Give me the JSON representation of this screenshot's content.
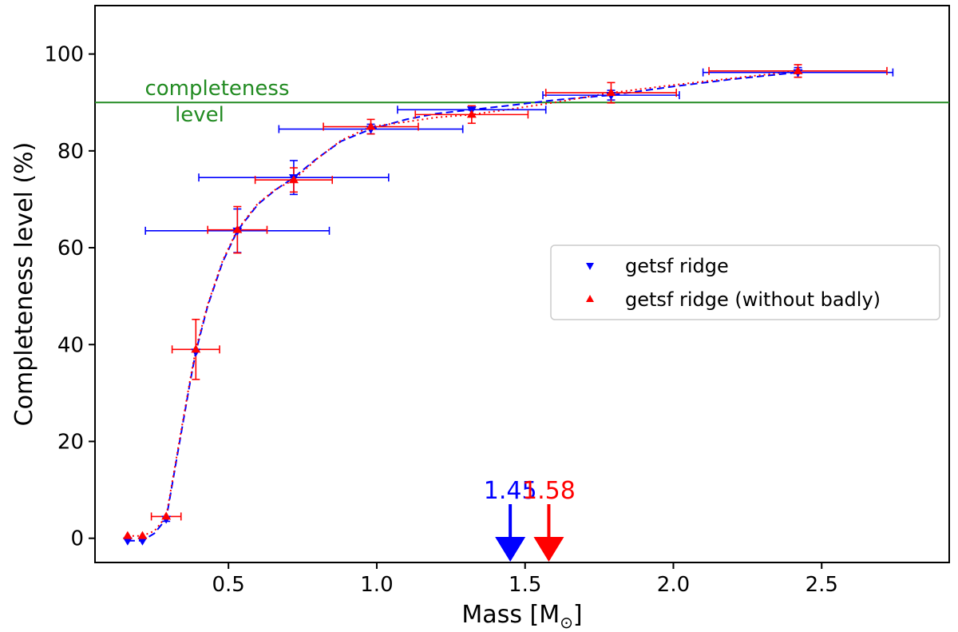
{
  "chart_data": {
    "type": "scatter",
    "xlabel": "Mass [M",
    "xlabel_sub": "⊙",
    "xlabel_close": "]",
    "ylabel": "Completeness level (%)",
    "xlim": [
      0.05,
      2.93
    ],
    "ylim": [
      -5,
      110
    ],
    "x_ticks": [
      0.5,
      1.0,
      1.5,
      2.0,
      2.5
    ],
    "x_tick_labels": [
      "0.5",
      "1.0",
      "1.5",
      "2.0",
      "2.5"
    ],
    "y_ticks": [
      0,
      20,
      40,
      60,
      80,
      100
    ],
    "y_tick_labels": [
      "0",
      "20",
      "40",
      "60",
      "80",
      "100"
    ],
    "grid": false,
    "legend_position": "center-right",
    "reference_line": {
      "y": 90,
      "label_line1": "completeness",
      "label_line2": "level",
      "color": "#228b22"
    },
    "series": [
      {
        "name": "getsf ridge",
        "color": "#0000ff",
        "marker": "triangle-down",
        "line_style": "dashed",
        "points": [
          {
            "x": 0.16,
            "y": -0.5,
            "xerr": 0,
            "yerr": 0
          },
          {
            "x": 0.21,
            "y": -0.5,
            "xerr": 0,
            "yerr": 0
          },
          {
            "x": 0.29,
            "y": 4.0,
            "xerr": 0,
            "yerr": 0.5
          },
          {
            "x": 0.39,
            "y": 38.5,
            "xerr": 0,
            "yerr": 0
          },
          {
            "x": 0.53,
            "y": 63.5,
            "xerr": 0.31,
            "yerr": 4.5
          },
          {
            "x": 0.72,
            "y": 74.5,
            "xerr": 0.32,
            "yerr": 3.5
          },
          {
            "x": 0.98,
            "y": 84.5,
            "xerr": 0.31,
            "yerr": 1.0
          },
          {
            "x": 1.32,
            "y": 88.5,
            "xerr": 0.25,
            "yerr": 0
          },
          {
            "x": 1.79,
            "y": 91.5,
            "xerr": 0.23,
            "yerr": 1.0
          },
          {
            "x": 2.42,
            "y": 96.2,
            "xerr": 0.32,
            "yerr": 1.0
          }
        ],
        "curve": [
          [
            0.16,
            -0.5
          ],
          [
            0.21,
            -0.5
          ],
          [
            0.25,
            1.0
          ],
          [
            0.29,
            4.0
          ],
          [
            0.33,
            18
          ],
          [
            0.37,
            32
          ],
          [
            0.39,
            38.5
          ],
          [
            0.43,
            48
          ],
          [
            0.48,
            57
          ],
          [
            0.53,
            63.5
          ],
          [
            0.6,
            69
          ],
          [
            0.66,
            72
          ],
          [
            0.72,
            74.5
          ],
          [
            0.8,
            78.5
          ],
          [
            0.88,
            82
          ],
          [
            0.98,
            84.5
          ],
          [
            1.1,
            86.5
          ],
          [
            1.2,
            87.7
          ],
          [
            1.32,
            88.5
          ],
          [
            1.45,
            89.4
          ],
          [
            1.6,
            90.5
          ],
          [
            1.79,
            91.5
          ],
          [
            2.0,
            93.3
          ],
          [
            2.2,
            94.8
          ],
          [
            2.42,
            96.2
          ]
        ],
        "threshold": 1.45,
        "threshold_label": "1.45"
      },
      {
        "name": "getsf ridge (without badly)",
        "color": "#ff0000",
        "marker": "triangle-up",
        "line_style": "dotted",
        "points": [
          {
            "x": 0.16,
            "y": 0.5,
            "xerr": 0,
            "yerr": 0
          },
          {
            "x": 0.21,
            "y": 0.5,
            "xerr": 0,
            "yerr": 0
          },
          {
            "x": 0.29,
            "y": 4.5,
            "xerr": 0.05,
            "yerr": 0
          },
          {
            "x": 0.39,
            "y": 39.0,
            "xerr": 0.08,
            "yerr": 6.2
          },
          {
            "x": 0.53,
            "y": 63.7,
            "xerr": 0.1,
            "yerr": 4.8
          },
          {
            "x": 0.72,
            "y": 74.0,
            "xerr": 0.13,
            "yerr": 2.5
          },
          {
            "x": 0.98,
            "y": 85.0,
            "xerr": 0.16,
            "yerr": 1.5
          },
          {
            "x": 1.32,
            "y": 87.5,
            "xerr": 0.19,
            "yerr": 1.8
          },
          {
            "x": 1.79,
            "y": 92.0,
            "xerr": 0.22,
            "yerr": 2.1
          },
          {
            "x": 2.42,
            "y": 96.5,
            "xerr": 0.3,
            "yerr": 1.3
          }
        ],
        "curve": [
          [
            0.16,
            0.5
          ],
          [
            0.21,
            0.5
          ],
          [
            0.25,
            1.5
          ],
          [
            0.29,
            4.5
          ],
          [
            0.33,
            18.5
          ],
          [
            0.37,
            32.5
          ],
          [
            0.39,
            39.0
          ],
          [
            0.43,
            48.3
          ],
          [
            0.48,
            57.3
          ],
          [
            0.53,
            63.7
          ],
          [
            0.6,
            69.2
          ],
          [
            0.66,
            72.1
          ],
          [
            0.72,
            74.0
          ],
          [
            0.8,
            78.4
          ],
          [
            0.88,
            82.2
          ],
          [
            0.98,
            85.0
          ],
          [
            1.1,
            86.0
          ],
          [
            1.2,
            86.9
          ],
          [
            1.32,
            87.5
          ],
          [
            1.45,
            88.6
          ],
          [
            1.6,
            90.0
          ],
          [
            1.79,
            92.0
          ],
          [
            2.0,
            93.6
          ],
          [
            2.2,
            95.0
          ],
          [
            2.42,
            96.5
          ]
        ],
        "threshold": 1.58,
        "threshold_label": "1.58"
      }
    ]
  }
}
